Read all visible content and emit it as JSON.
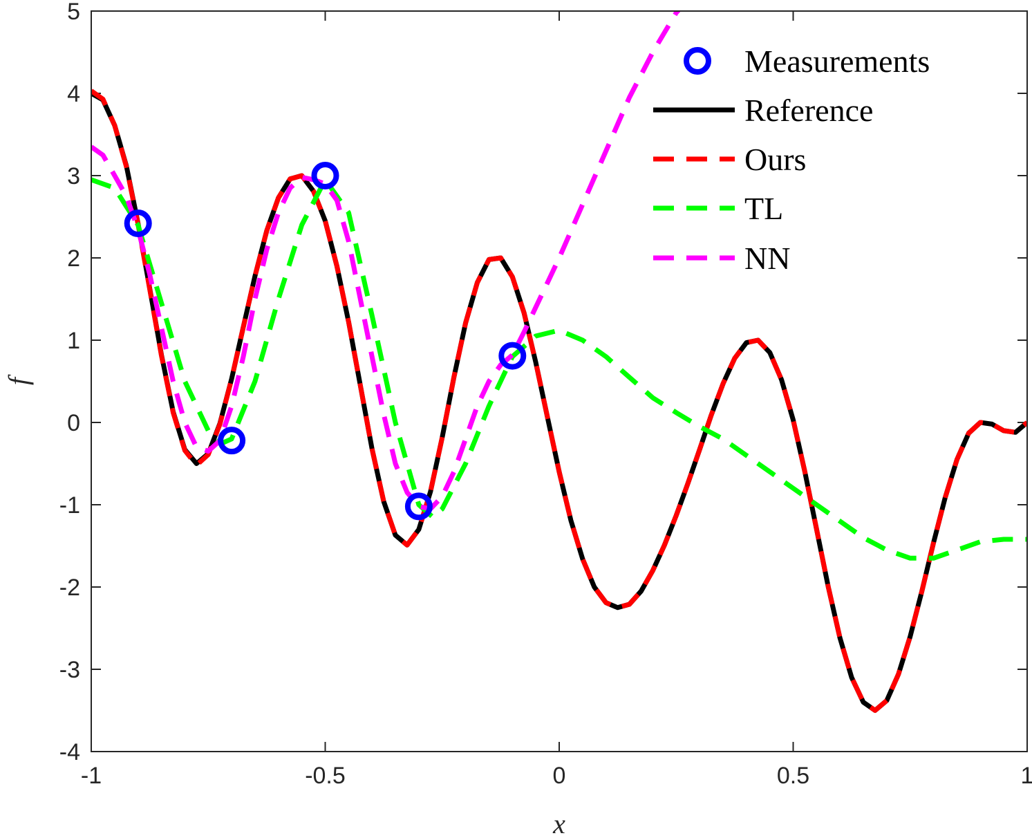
{
  "chart_data": {
    "type": "line",
    "xlabel": "x",
    "ylabel": "f",
    "xlim": [
      -1,
      1
    ],
    "ylim": [
      -4,
      5
    ],
    "xticks": [
      -1,
      -0.5,
      0,
      0.5,
      1
    ],
    "xtick_labels": [
      "-1",
      "-0.5",
      "0",
      "0.5",
      "1"
    ],
    "yticks": [
      -4,
      -3,
      -2,
      -1,
      0,
      1,
      2,
      3,
      4,
      5
    ],
    "ytick_labels": [
      "-4",
      "-3",
      "-2",
      "-1",
      "0",
      "1",
      "2",
      "3",
      "4",
      "5"
    ],
    "grid": false,
    "box": true,
    "legend_position": "top-right",
    "series": [
      {
        "name": "Measurements",
        "style": "marker",
        "color": "#0000ff",
        "x": [
          -0.9,
          -0.7,
          -0.5,
          -0.3,
          -0.1
        ],
        "y": [
          2.42,
          -0.22,
          3.0,
          -1.02,
          0.81
        ]
      },
      {
        "name": "Reference",
        "style": "solid",
        "color": "#000000",
        "x": [
          -1.0,
          -0.975,
          -0.95,
          -0.925,
          -0.9,
          -0.875,
          -0.85,
          -0.825,
          -0.8,
          -0.775,
          -0.75,
          -0.725,
          -0.7,
          -0.675,
          -0.65,
          -0.625,
          -0.6,
          -0.575,
          -0.55,
          -0.525,
          -0.5,
          -0.475,
          -0.45,
          -0.425,
          -0.4,
          -0.375,
          -0.35,
          -0.325,
          -0.3,
          -0.275,
          -0.25,
          -0.225,
          -0.2,
          -0.175,
          -0.15,
          -0.125,
          -0.1,
          -0.075,
          -0.05,
          -0.025,
          0.0,
          0.025,
          0.05,
          0.075,
          0.1,
          0.125,
          0.15,
          0.175,
          0.2,
          0.225,
          0.25,
          0.275,
          0.3,
          0.325,
          0.35,
          0.375,
          0.4,
          0.425,
          0.45,
          0.475,
          0.5,
          0.525,
          0.55,
          0.575,
          0.6,
          0.625,
          0.65,
          0.675,
          0.7,
          0.725,
          0.75,
          0.775,
          0.8,
          0.825,
          0.85,
          0.875,
          0.9,
          0.925,
          0.95,
          0.975,
          1.0
        ],
        "y": [
          4.0,
          3.92,
          3.61,
          3.12,
          2.42,
          1.63,
          0.82,
          0.13,
          -0.33,
          -0.5,
          -0.38,
          -0.01,
          0.53,
          1.16,
          1.78,
          2.33,
          2.73,
          2.96,
          3.0,
          2.81,
          2.45,
          1.9,
          1.22,
          0.45,
          -0.32,
          -0.96,
          -1.37,
          -1.49,
          -1.3,
          -0.84,
          -0.18,
          0.55,
          1.21,
          1.7,
          1.98,
          2.0,
          1.77,
          1.33,
          0.73,
          0.06,
          -0.6,
          -1.19,
          -1.66,
          -2.0,
          -2.19,
          -2.25,
          -2.21,
          -2.05,
          -1.8,
          -1.49,
          -1.13,
          -0.74,
          -0.33,
          0.09,
          0.47,
          0.78,
          0.97,
          1.0,
          0.85,
          0.52,
          0.03,
          -0.6,
          -1.3,
          -2.0,
          -2.62,
          -3.1,
          -3.4,
          -3.5,
          -3.38,
          -3.06,
          -2.6,
          -2.05,
          -1.46,
          -0.91,
          -0.45,
          -0.13,
          0.0,
          -0.02,
          -0.1,
          -0.12,
          0.0
        ]
      },
      {
        "name": "Ours",
        "style": "dashed",
        "color": "#ff0000",
        "x": [
          -1.0,
          -0.975,
          -0.95,
          -0.925,
          -0.9,
          -0.875,
          -0.85,
          -0.825,
          -0.8,
          -0.775,
          -0.75,
          -0.725,
          -0.7,
          -0.675,
          -0.65,
          -0.625,
          -0.6,
          -0.575,
          -0.55,
          -0.525,
          -0.5,
          -0.475,
          -0.45,
          -0.425,
          -0.4,
          -0.375,
          -0.35,
          -0.325,
          -0.3,
          -0.275,
          -0.25,
          -0.225,
          -0.2,
          -0.175,
          -0.15,
          -0.125,
          -0.1,
          -0.075,
          -0.05,
          -0.025,
          0.0,
          0.025,
          0.05,
          0.075,
          0.1,
          0.125,
          0.15,
          0.175,
          0.2,
          0.225,
          0.25,
          0.275,
          0.3,
          0.325,
          0.35,
          0.375,
          0.4,
          0.425,
          0.45,
          0.475,
          0.5,
          0.525,
          0.55,
          0.575,
          0.6,
          0.625,
          0.65,
          0.675,
          0.7,
          0.725,
          0.75,
          0.775,
          0.8,
          0.825,
          0.85,
          0.875,
          0.9,
          0.925,
          0.95,
          0.975,
          1.0
        ],
        "y": [
          4.03,
          3.93,
          3.61,
          3.11,
          2.41,
          1.62,
          0.81,
          0.12,
          -0.34,
          -0.52,
          -0.39,
          -0.02,
          0.53,
          1.16,
          1.78,
          2.33,
          2.73,
          2.96,
          3.0,
          2.81,
          2.45,
          1.9,
          1.22,
          0.45,
          -0.32,
          -0.96,
          -1.37,
          -1.49,
          -1.3,
          -0.84,
          -0.18,
          0.55,
          1.21,
          1.7,
          1.98,
          2.0,
          1.77,
          1.33,
          0.73,
          0.06,
          -0.6,
          -1.19,
          -1.66,
          -2.0,
          -2.19,
          -2.25,
          -2.21,
          -2.05,
          -1.8,
          -1.49,
          -1.13,
          -0.74,
          -0.33,
          0.09,
          0.47,
          0.78,
          0.97,
          1.0,
          0.85,
          0.52,
          0.03,
          -0.6,
          -1.3,
          -2.0,
          -2.62,
          -3.1,
          -3.4,
          -3.5,
          -3.38,
          -3.06,
          -2.6,
          -2.05,
          -1.46,
          -0.91,
          -0.45,
          -0.13,
          0.0,
          -0.02,
          -0.1,
          -0.12,
          0.0
        ]
      },
      {
        "name": "TL",
        "style": "dashed",
        "color": "#00ff00",
        "x": [
          -1.0,
          -0.95,
          -0.9,
          -0.85,
          -0.8,
          -0.75,
          -0.72,
          -0.7,
          -0.65,
          -0.6,
          -0.55,
          -0.5,
          -0.45,
          -0.4,
          -0.35,
          -0.3,
          -0.27,
          -0.25,
          -0.2,
          -0.15,
          -0.1,
          -0.05,
          0.0,
          0.05,
          0.1,
          0.15,
          0.2,
          0.25,
          0.3,
          0.35,
          0.4,
          0.45,
          0.5,
          0.55,
          0.6,
          0.65,
          0.7,
          0.75,
          0.8,
          0.85,
          0.9,
          0.95,
          1.0
        ],
        "y": [
          2.95,
          2.85,
          2.4,
          1.45,
          0.5,
          -0.1,
          -0.25,
          -0.2,
          0.5,
          1.5,
          2.4,
          2.95,
          2.55,
          1.3,
          0.0,
          -1.0,
          -1.15,
          -1.05,
          -0.5,
          0.2,
          0.8,
          1.05,
          1.12,
          1.0,
          0.8,
          0.55,
          0.3,
          0.12,
          -0.05,
          -0.2,
          -0.4,
          -0.6,
          -0.8,
          -1.0,
          -1.2,
          -1.4,
          -1.55,
          -1.65,
          -1.65,
          -1.55,
          -1.45,
          -1.42,
          -1.42
        ]
      },
      {
        "name": "NN",
        "style": "dashed",
        "color": "#ff00ff",
        "x": [
          -1.0,
          -0.975,
          -0.95,
          -0.925,
          -0.9,
          -0.875,
          -0.85,
          -0.825,
          -0.8,
          -0.775,
          -0.75,
          -0.725,
          -0.7,
          -0.675,
          -0.65,
          -0.625,
          -0.6,
          -0.575,
          -0.55,
          -0.525,
          -0.5,
          -0.475,
          -0.45,
          -0.425,
          -0.4,
          -0.375,
          -0.35,
          -0.325,
          -0.3,
          -0.275,
          -0.25,
          -0.225,
          -0.2,
          -0.175,
          -0.15,
          -0.125,
          -0.1,
          -0.075,
          -0.05,
          -0.025,
          0.0,
          0.05,
          0.1,
          0.15,
          0.2,
          0.25,
          0.3
        ],
        "y": [
          3.35,
          3.25,
          3.0,
          2.75,
          2.35,
          1.8,
          1.15,
          0.5,
          0.0,
          -0.3,
          -0.35,
          -0.22,
          0.2,
          0.8,
          1.5,
          2.1,
          2.55,
          2.85,
          2.98,
          2.95,
          2.9,
          2.7,
          2.2,
          1.5,
          0.8,
          0.1,
          -0.5,
          -0.85,
          -1.02,
          -1.05,
          -0.9,
          -0.6,
          -0.2,
          0.2,
          0.5,
          0.7,
          0.82,
          1.1,
          1.4,
          1.7,
          2.0,
          2.65,
          3.3,
          3.95,
          4.5,
          4.98,
          5.3
        ]
      }
    ]
  }
}
